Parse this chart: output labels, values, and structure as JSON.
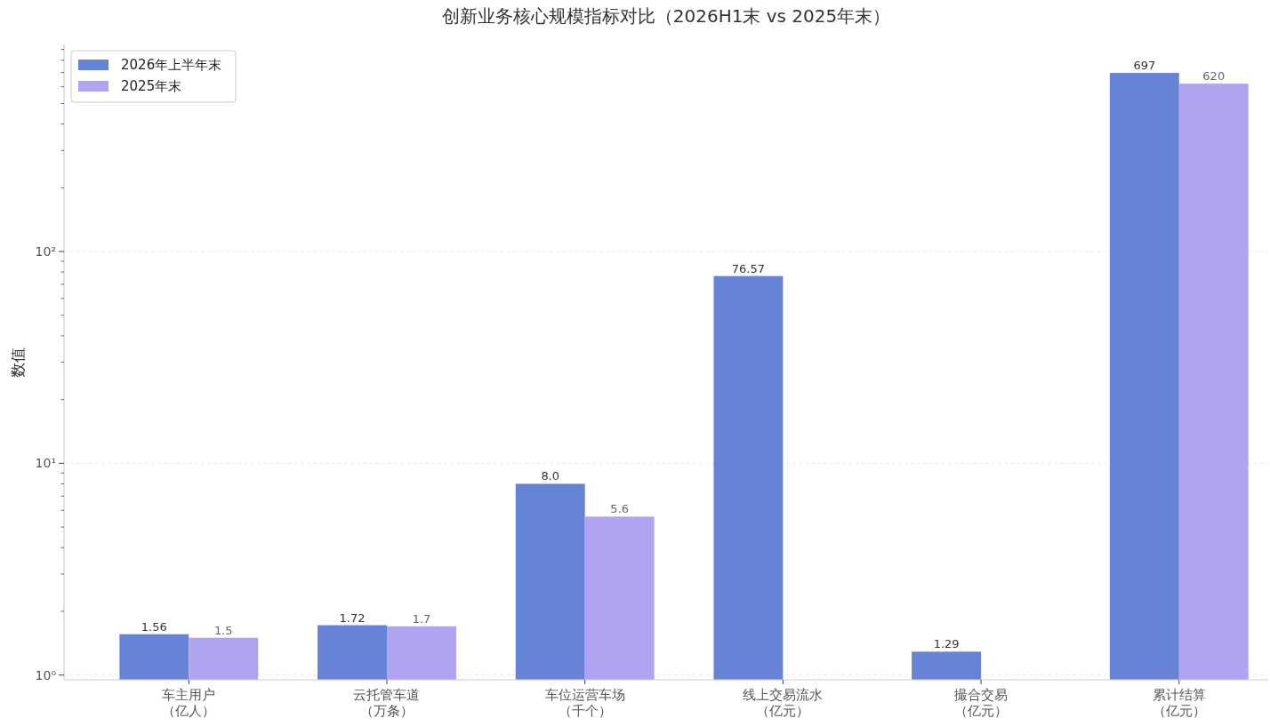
{
  "chart_data": {
    "type": "bar",
    "title": "创新业务核心规模指标对比（2026H1末 vs 2025年末）",
    "ylabel": "数值",
    "categories": [
      "车主用户（亿人）",
      "云托管车道（万条）",
      "车位运营车场（千个）",
      "线上交易流水（亿元）",
      "撮合交易（亿元）",
      "累计结算（亿元）"
    ],
    "series": [
      {
        "name": "2026年上半年末",
        "color": "#6584d6",
        "values": [
          1.56,
          1.72,
          8.0,
          76.57,
          1.29,
          697
        ],
        "value_labels": [
          "1.56",
          "1.72",
          "8.0",
          "76.57",
          "1.29",
          "697"
        ]
      },
      {
        "name": "2025年末",
        "color": "#afa3f2",
        "values": [
          1.5,
          1.7,
          5.6,
          null,
          null,
          620
        ],
        "value_labels": [
          "1.5",
          "1.7",
          "5.6",
          null,
          null,
          "620"
        ]
      }
    ],
    "log": "y",
    "ylim": [
      0.95,
      950
    ],
    "yticks": [
      {
        "value": 1,
        "label": "10⁰"
      },
      {
        "value": 2,
        "label": null
      },
      {
        "value": 3,
        "label": null
      },
      {
        "value": 4,
        "label": null
      },
      {
        "value": 5,
        "label": null
      },
      {
        "value": 6,
        "label": null
      },
      {
        "value": 7,
        "label": null
      },
      {
        "value": 8,
        "label": null
      },
      {
        "value": 9,
        "label": null
      },
      {
        "value": 10,
        "label": "10¹"
      },
      {
        "value": 20,
        "label": null
      },
      {
        "value": 30,
        "label": null
      },
      {
        "value": 40,
        "label": null
      },
      {
        "value": 50,
        "label": null
      },
      {
        "value": 60,
        "label": null
      },
      {
        "value": 70,
        "label": null
      },
      {
        "value": 80,
        "label": null
      },
      {
        "value": 90,
        "label": null
      },
      {
        "value": 100,
        "label": "10²"
      },
      {
        "value": 200,
        "label": null
      },
      {
        "value": 300,
        "label": null
      },
      {
        "value": 400,
        "label": null
      },
      {
        "value": 500,
        "label": null
      },
      {
        "value": 600,
        "label": null
      },
      {
        "value": 700,
        "label": null
      },
      {
        "value": 800,
        "label": null
      },
      {
        "value": 900,
        "label": null
      }
    ],
    "grid": "y",
    "legend": "top left"
  }
}
